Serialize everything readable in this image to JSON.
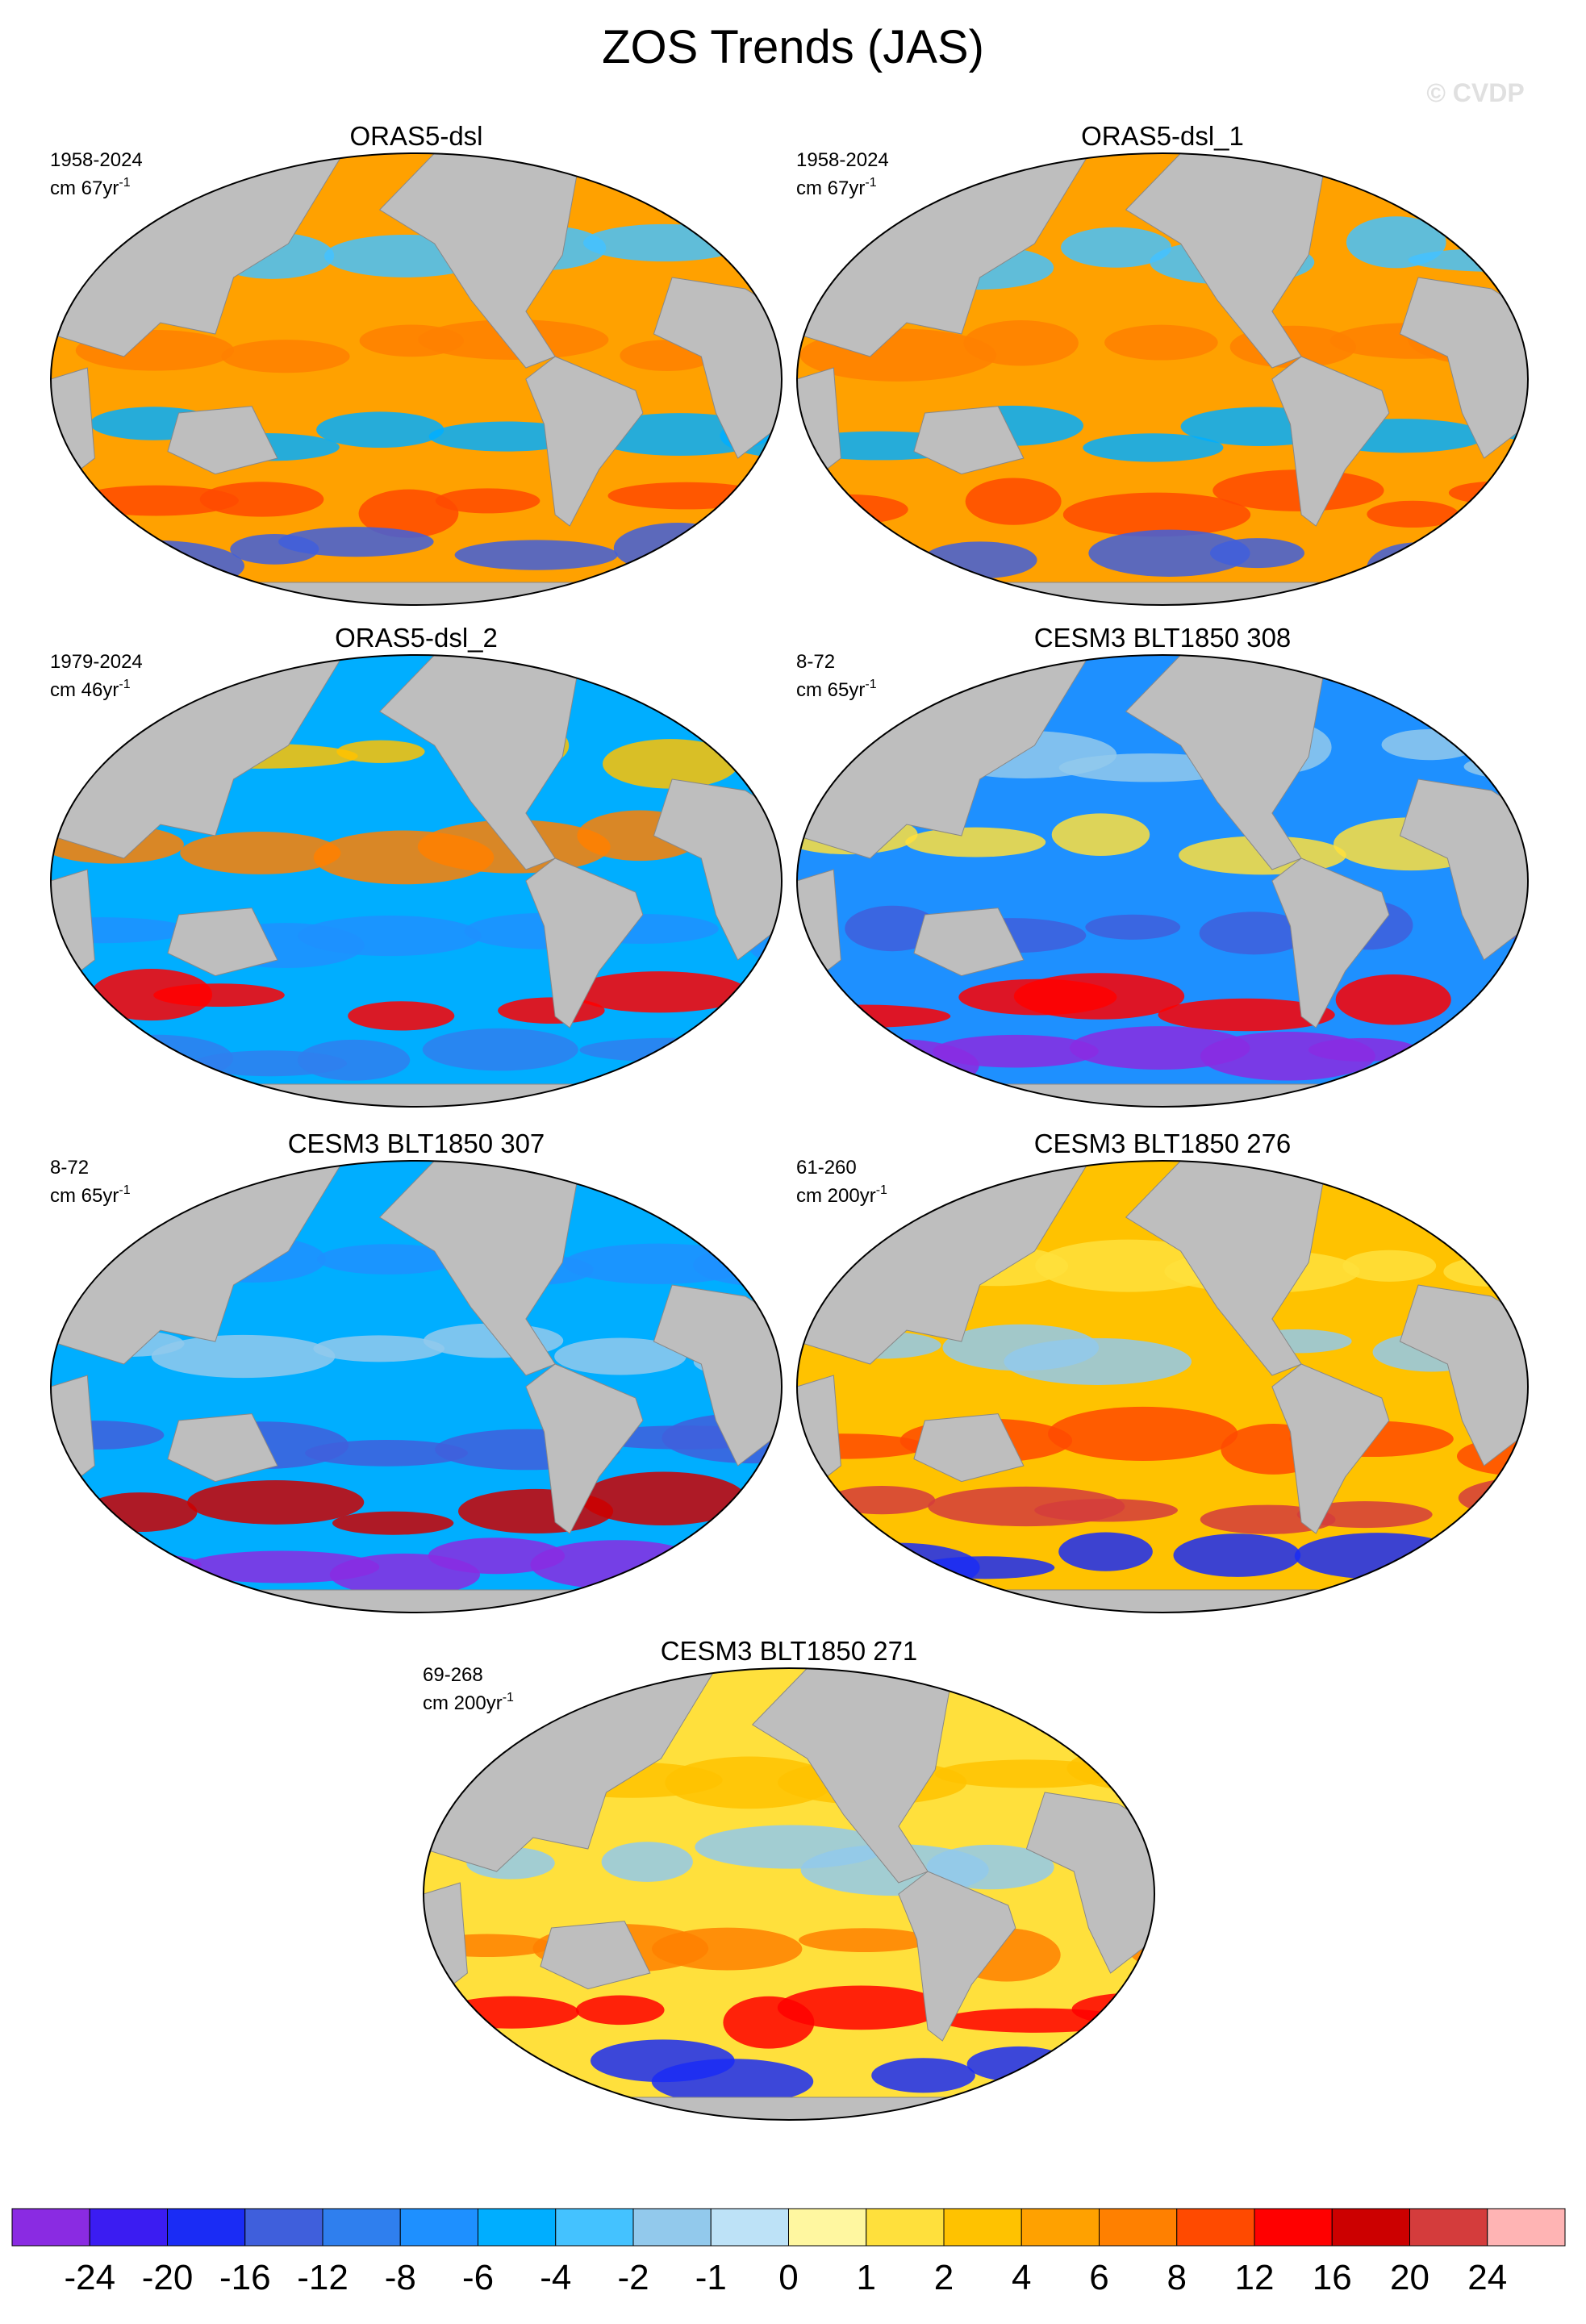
{
  "title": "ZOS Trends (JAS)",
  "watermark": "© CVDP",
  "panels": [
    {
      "title": "ORAS5-dsl",
      "period": "1958-2024",
      "units": "cm 67yr",
      "units_exp": "-1"
    },
    {
      "title": "ORAS5-dsl_1",
      "period": "1958-2024",
      "units": "cm 67yr",
      "units_exp": "-1"
    },
    {
      "title": "ORAS5-dsl_2",
      "period": "1979-2024",
      "units": "cm 46yr",
      "units_exp": "-1"
    },
    {
      "title": "CESM3 BLT1850 308",
      "period": "8-72",
      "units": "cm 65yr",
      "units_exp": "-1"
    },
    {
      "title": "CESM3 BLT1850 307",
      "period": "8-72",
      "units": "cm 65yr",
      "units_exp": "-1"
    },
    {
      "title": "CESM3 BLT1850 276",
      "period": "61-260",
      "units": "cm 200yr",
      "units_exp": "-1"
    },
    {
      "title": "CESM3 BLT1850 271",
      "period": "69-268",
      "units": "cm 200yr",
      "units_exp": "-1"
    }
  ],
  "colorbar": {
    "colors": [
      "#8a2be2",
      "#3b1cf2",
      "#1a2cf5",
      "#3f5fdc",
      "#2f7fee",
      "#1e90ff",
      "#00aeff",
      "#44c2ff",
      "#92c9ec",
      "#bde2f7",
      "#fff7a0",
      "#ffe03c",
      "#ffc200",
      "#ffa100",
      "#ff8000",
      "#ff4a00",
      "#ff0000",
      "#cc0000",
      "#d43c3c",
      "#ffb4b4"
    ],
    "levels": [
      -24,
      -20,
      -16,
      -12,
      -8,
      -6,
      -4,
      -2,
      -1,
      0,
      1,
      2,
      4,
      6,
      8,
      12,
      16,
      20,
      24
    ]
  }
}
